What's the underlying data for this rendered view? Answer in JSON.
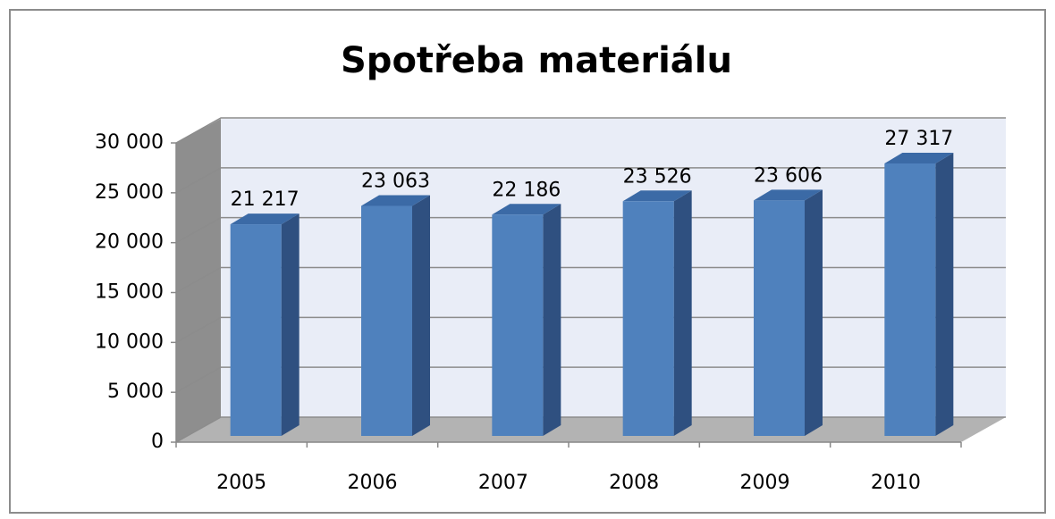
{
  "chart_data": {
    "type": "bar",
    "title": "Spotřeba materiálu",
    "categories": [
      "2005",
      "2006",
      "2007",
      "2008",
      "2009",
      "2010"
    ],
    "values": [
      21217,
      23063,
      22186,
      23526,
      23606,
      27317
    ],
    "value_labels": [
      "21 217",
      "23 063",
      "22 186",
      "23 526",
      "23 606",
      "27 317"
    ],
    "color": "#4f81bd",
    "ylim": [
      0,
      30000
    ],
    "yticks": [
      0,
      {
        "value": 5000,
        "label": "5 000"
      },
      {
        "value": 10000,
        "label": "10 000"
      },
      {
        "value": 15000,
        "label": "15 000"
      },
      {
        "value": 20000,
        "label": "20 000"
      },
      {
        "value": 25000,
        "label": "25 000"
      },
      {
        "value": 30000,
        "label": "30 000"
      }
    ],
    "grid": true
  }
}
